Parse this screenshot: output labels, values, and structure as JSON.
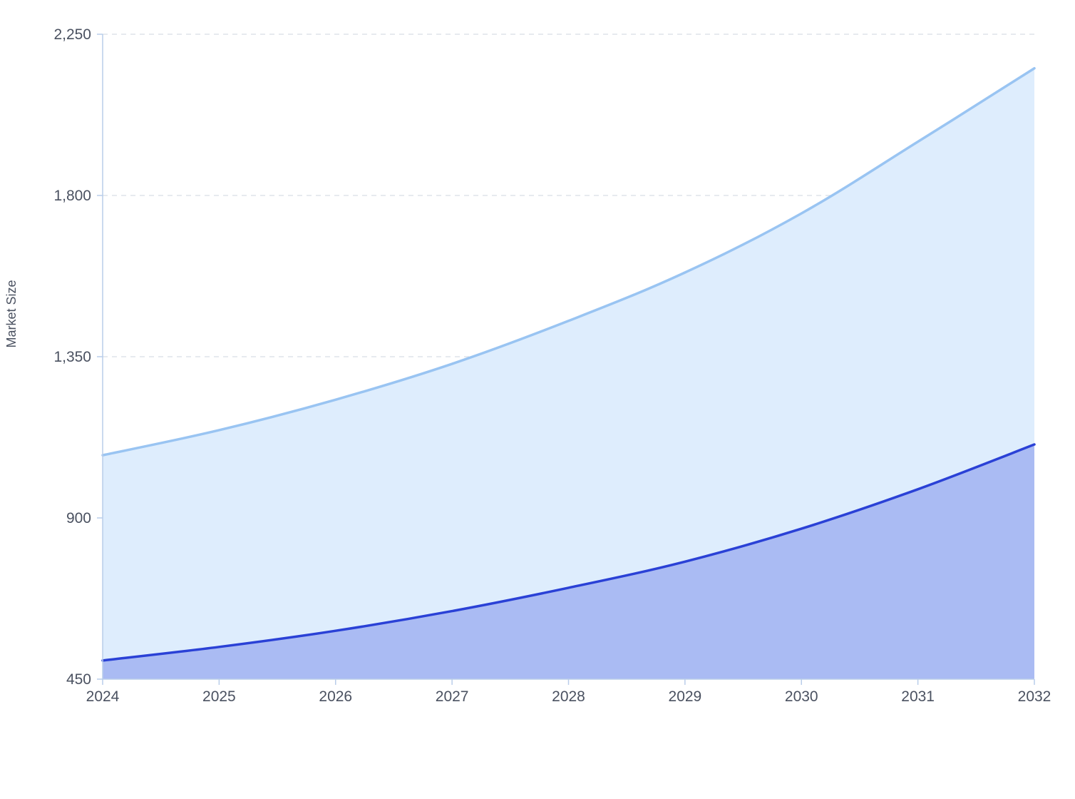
{
  "chart_data": {
    "type": "area",
    "x": [
      2024,
      2025,
      2026,
      2027,
      2028,
      2029,
      2030,
      2031,
      2032
    ],
    "xlabel": "",
    "ylabel": "Market Size",
    "ylim": [
      450,
      2250
    ],
    "yticks": [
      450,
      900,
      1350,
      1800,
      2250
    ],
    "ytick_labels": [
      "450",
      "900",
      "1,350",
      "1,800",
      "2,250"
    ],
    "xtick_labels": [
      "2024",
      "2025",
      "2026",
      "2027",
      "2028",
      "2029",
      "2030",
      "2031",
      "2032"
    ],
    "grid": true,
    "series": [
      {
        "values": [
          1075,
          1145,
          1230,
          1330,
          1450,
          1585,
          1750,
          1950,
          2155
        ],
        "line_color": "#99c4f2",
        "fill_color": "#deedfd"
      },
      {
        "values": [
          502,
          540,
          585,
          640,
          705,
          778,
          870,
          980,
          1105
        ],
        "line_color": "#2a41d6",
        "fill_color": "#aabbf3"
      }
    ]
  }
}
